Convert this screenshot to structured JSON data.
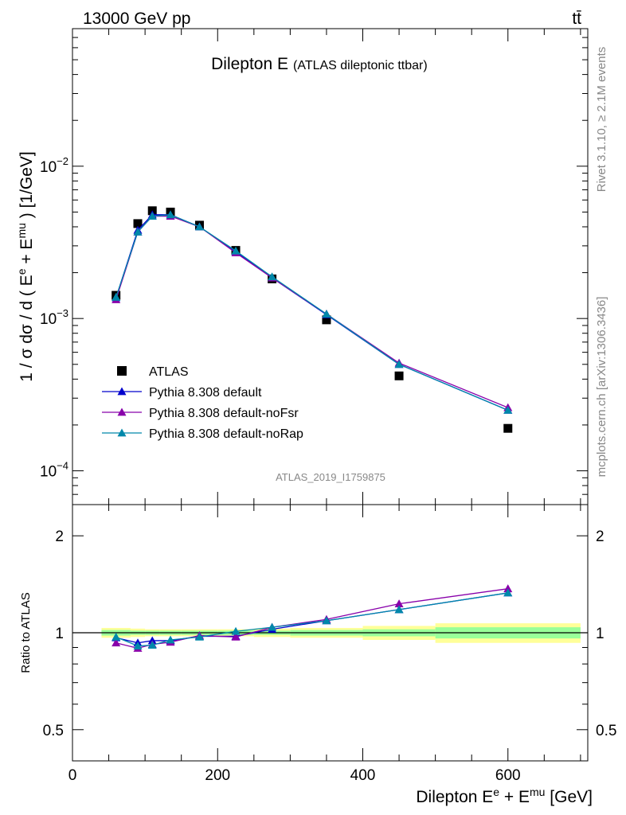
{
  "header": {
    "left": "13000 GeV pp",
    "right": "tt̄"
  },
  "side_text": {
    "rivet": "Rivet 3.1.10, ≥ 2.1M events",
    "mcplots": "mcplots.cern.ch [arXiv:1306.3436]"
  },
  "chart_data": [
    {
      "type": "scatter",
      "title": "Dilepton E",
      "subtitle": "(ATLAS dileptonic ttbar)",
      "watermark": "ATLAS_2019_I1759875",
      "ylabel_main": "1 / σ  dσ / d ( E",
      "ylabel_sup1": "e",
      "ylabel_mid": " + E",
      "ylabel_sup2": "mu",
      "ylabel_end": " ) [1/GeV]",
      "yscale": "log",
      "xlim": [
        0,
        710
      ],
      "ylim": [
        6e-05,
        0.08
      ],
      "yticks": [
        {
          "value": 0.01,
          "base": "10",
          "exp": "−2"
        },
        {
          "value": 0.001,
          "base": "10",
          "exp": "−3"
        },
        {
          "value": 0.0001,
          "base": "10",
          "exp": "−4"
        }
      ],
      "legend_position": "middle-left",
      "x": [
        60,
        90,
        110,
        135,
        175,
        225,
        275,
        350,
        450,
        600
      ],
      "series": [
        {
          "name": "ATLAS",
          "color": "#000000",
          "marker": "square",
          "values": [
            0.00142,
            0.0042,
            0.0051,
            0.005,
            0.0041,
            0.0028,
            0.00182,
            0.00098,
            0.00042,
            0.00019
          ]
        },
        {
          "name": "Pythia 8.308 default",
          "color": "#0000cc",
          "marker": "triangle",
          "values": [
            0.00137,
            0.0038,
            0.0048,
            0.0048,
            0.004,
            0.00275,
            0.00185,
            0.00106,
            0.0005,
            0.00025
          ]
        },
        {
          "name": "Pythia 8.308 default-noFsr",
          "color": "#8800aa",
          "marker": "triangle",
          "values": [
            0.00133,
            0.0037,
            0.0047,
            0.0047,
            0.004,
            0.0027,
            0.00185,
            0.00107,
            0.00051,
            0.00026
          ]
        },
        {
          "name": "Pythia 8.308 default-noRap",
          "color": "#0088aa",
          "marker": "triangle",
          "values": [
            0.00138,
            0.0037,
            0.0047,
            0.0048,
            0.004,
            0.00278,
            0.00188,
            0.00107,
            0.0005,
            0.00025
          ]
        }
      ]
    },
    {
      "type": "line",
      "ylabel": "Ratio to ATLAS",
      "xlabel_main": "Dilepton E",
      "xlabel_sup1": "e",
      "xlabel_mid": " + E",
      "xlabel_sup2": "mu",
      "xlabel_end": " [GeV]",
      "yscale": "log",
      "xlim": [
        0,
        710
      ],
      "ylim": [
        0.4,
        2.5
      ],
      "xticks": [
        0,
        200,
        400,
        600
      ],
      "yticks": [
        0.5,
        1,
        2
      ],
      "band_bins": [
        [
          40,
          80
        ],
        [
          80,
          100
        ],
        [
          100,
          120
        ],
        [
          120,
          150
        ],
        [
          150,
          200
        ],
        [
          200,
          250
        ],
        [
          250,
          300
        ],
        [
          300,
          400
        ],
        [
          400,
          500
        ],
        [
          500,
          700
        ]
      ],
      "band_inner": [
        0.02,
        0.015,
        0.015,
        0.015,
        0.015,
        0.015,
        0.015,
        0.02,
        0.025,
        0.04
      ],
      "band_outer": [
        0.035,
        0.03,
        0.025,
        0.025,
        0.025,
        0.025,
        0.03,
        0.035,
        0.05,
        0.07
      ],
      "x": [
        60,
        90,
        110,
        135,
        175,
        225,
        275,
        350,
        450,
        600
      ],
      "series": [
        {
          "name": "Pythia 8.308 default",
          "color": "#0000cc",
          "values": [
            0.965,
            0.93,
            0.945,
            0.945,
            0.975,
            0.975,
            1.025,
            1.09,
            1.18,
            1.33
          ]
        },
        {
          "name": "Pythia 8.308 default-noFsr",
          "color": "#8800aa",
          "values": [
            0.93,
            0.895,
            0.92,
            0.935,
            0.98,
            0.97,
            1.04,
            1.1,
            1.23,
            1.37
          ]
        },
        {
          "name": "Pythia 8.308 default-noRap",
          "color": "#0088aa",
          "values": [
            0.97,
            0.91,
            0.915,
            0.95,
            0.97,
            1.01,
            1.04,
            1.09,
            1.18,
            1.33
          ]
        }
      ]
    }
  ]
}
